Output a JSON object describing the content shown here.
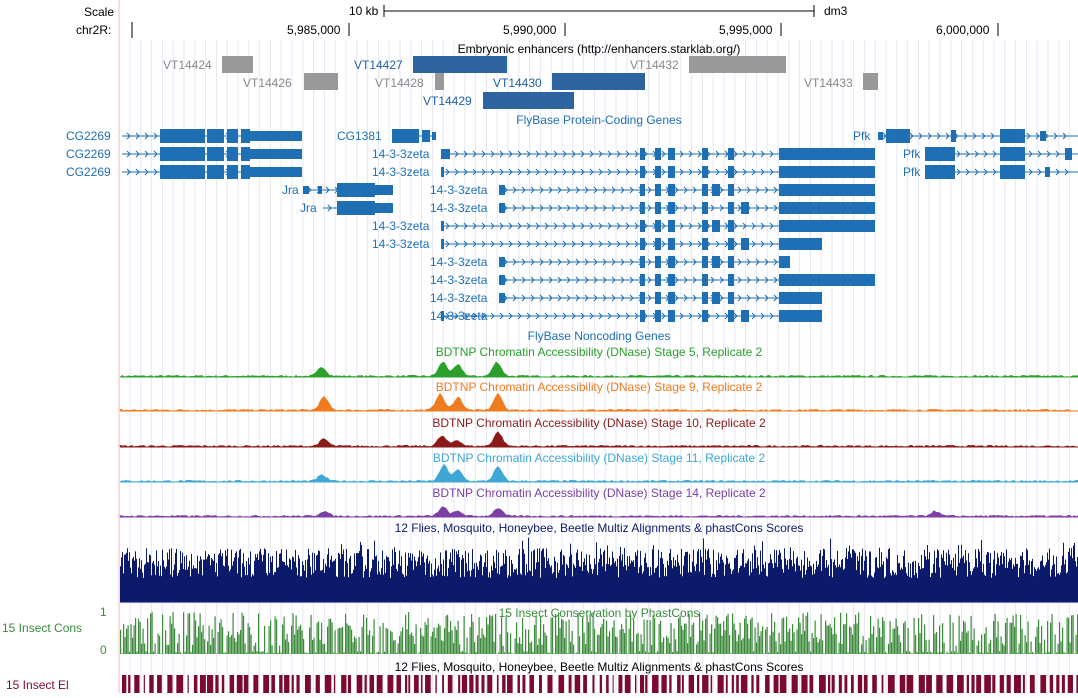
{
  "header": {
    "scale_label": "Scale",
    "chrom_label": "chr2R:",
    "scale_bar_text": "10 kb",
    "assembly": "dm3",
    "ruler_ticks": [
      "5,985,000",
      "5,990,000",
      "5,995,000",
      "6,000,000"
    ]
  },
  "tracks": {
    "enhancers": {
      "title": "Embryonic enhancers (http://enhancers.starklab.org/)",
      "items": [
        "VT14424",
        "VT14426",
        "VT14427",
        "VT14428",
        "VT14430",
        "VT14432",
        "VT14429",
        "VT14433"
      ]
    },
    "protein_coding": {
      "title": "FlyBase Protein-Coding Genes",
      "genes": [
        "CG2269",
        "CG2269",
        "CG2269",
        "CG1381",
        "Jra",
        "Jra",
        "14-3-3zeta",
        "14-3-3zeta",
        "14-3-3zeta",
        "14-3-3zeta",
        "14-3-3zeta",
        "14-3-3zeta",
        "14-3-3zeta",
        "14-3-3zeta",
        "14-3-3zeta",
        "14-3-3zeta",
        "Pfk",
        "Pfk",
        "Pfk"
      ]
    },
    "noncoding": {
      "title": "FlyBase Noncoding Genes"
    },
    "dnase": [
      {
        "title": "BDTNP Chromatin Accessibility (DNase) Stage 5, Replicate 2",
        "color": "#2ca02c"
      },
      {
        "title": "BDTNP Chromatin Accessibility (DNase) Stage 9, Replicate 2",
        "color": "#f07b1e"
      },
      {
        "title": "BDTNP Chromatin Accessibility (DNase) Stage 10, Replicate 2",
        "color": "#8b1a1a"
      },
      {
        "title": "BDTNP Chromatin Accessibility (DNase) Stage 11, Replicate 2",
        "color": "#3fa7d6"
      },
      {
        "title": "BDTNP Chromatin Accessibility (DNase) Stage 14, Replicate 2",
        "color": "#7b3fa6"
      }
    ],
    "multiz": {
      "title": "12 Flies, Mosquito, Honeybee, Beetle Multiz Alignments & phastCons Scores",
      "color": "#0b1a6b"
    },
    "phastcons": {
      "title": "15 Insect Conservation by PhastCons",
      "side_label": "15 Insect Cons",
      "y_max": "1",
      "y_min": "0",
      "color": "#3c8c3c"
    },
    "elements": {
      "title": "12 Flies, Mosquito, Honeybee, Beetle Multiz Alignments & phastCons Scores",
      "side_label": "15 Insect El",
      "color": "#7a0a2e"
    }
  }
}
